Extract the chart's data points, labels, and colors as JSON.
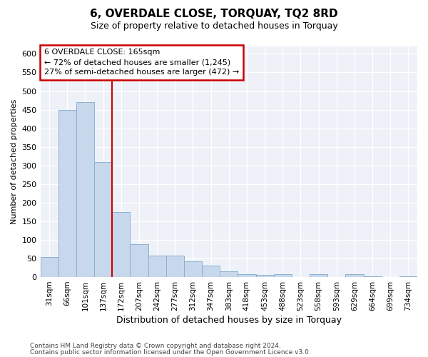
{
  "title": "6, OVERDALE CLOSE, TORQUAY, TQ2 8RD",
  "subtitle": "Size of property relative to detached houses in Torquay",
  "xlabel": "Distribution of detached houses by size in Torquay",
  "ylabel": "Number of detached properties",
  "categories": [
    "31sqm",
    "66sqm",
    "101sqm",
    "137sqm",
    "172sqm",
    "207sqm",
    "242sqm",
    "277sqm",
    "312sqm",
    "347sqm",
    "383sqm",
    "418sqm",
    "453sqm",
    "488sqm",
    "523sqm",
    "558sqm",
    "593sqm",
    "629sqm",
    "664sqm",
    "699sqm",
    "734sqm"
  ],
  "values": [
    53,
    450,
    470,
    310,
    175,
    88,
    57,
    57,
    42,
    30,
    15,
    7,
    6,
    7,
    0,
    8,
    0,
    8,
    2,
    0,
    3
  ],
  "bar_color": "#c8d8ec",
  "bar_edge_color": "#8ab0d0",
  "vline_index": 4,
  "annotation_text": "6 OVERDALE CLOSE: 165sqm\n← 72% of detached houses are smaller (1,245)\n27% of semi-detached houses are larger (472) →",
  "annotation_box_color": "#ffffff",
  "annotation_box_edge": "#cc0000",
  "vline_color": "#cc0000",
  "footer1": "Contains HM Land Registry data © Crown copyright and database right 2024.",
  "footer2": "Contains public sector information licensed under the Open Government Licence v3.0.",
  "bg_color": "#ffffff",
  "plot_bg_color": "#eef2f8",
  "ylim": [
    0,
    620
  ],
  "yticks": [
    0,
    50,
    100,
    150,
    200,
    250,
    300,
    350,
    400,
    450,
    500,
    550,
    600
  ]
}
